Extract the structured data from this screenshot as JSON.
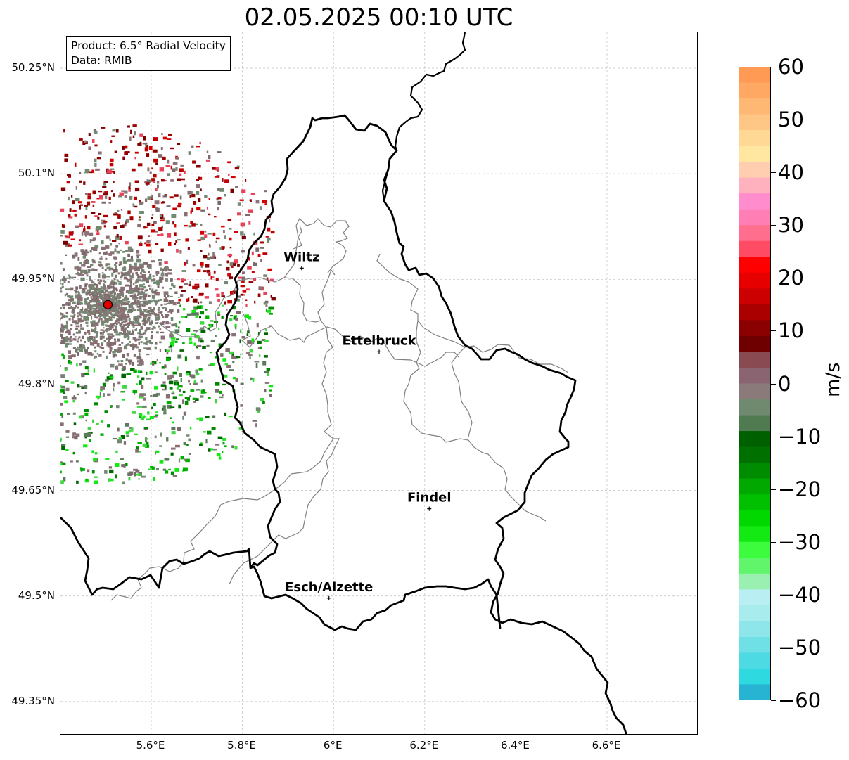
{
  "title": "02.05.2025 00:10 UTC",
  "info": {
    "product": "Product: 6.5° Radial Velocity",
    "source": "Data: RMIB"
  },
  "axes": {
    "lat_ticks": [
      "50.25°N",
      "50.1°N",
      "49.95°N",
      "49.8°N",
      "49.65°N",
      "49.5°N",
      "49.35°N"
    ],
    "lon_ticks": [
      "5.6°E",
      "5.8°E",
      "6°E",
      "6.2°E",
      "6.4°E",
      "6.6°E"
    ],
    "grid": true
  },
  "cities": [
    {
      "name": "Wiltz",
      "lon": 5.93,
      "lat": 49.966
    },
    {
      "name": "Ettelbruck",
      "lon": 6.1,
      "lat": 49.847
    },
    {
      "name": "Findel",
      "lon": 6.21,
      "lat": 49.624
    },
    {
      "name": "Esch/Alzette",
      "lon": 5.99,
      "lat": 49.497
    }
  ],
  "radar": {
    "lon": 5.505,
    "lat": 49.914,
    "color": "#e00000"
  },
  "colorbar": {
    "unit": "m/s",
    "min": -60,
    "max": 60,
    "ticks": [
      "60",
      "50",
      "40",
      "30",
      "20",
      "10",
      "0",
      "−10",
      "−20",
      "−30",
      "−40",
      "−50",
      "−60"
    ],
    "colors": {
      "inbound_deep": "#1f7fc4",
      "inbound_cyan": "#2fd9e0",
      "inbound_light": "#b9eef2",
      "green_bright": "#13ea13",
      "green_dark": "#006600",
      "zero_gray_green": "#6f8a6f",
      "zero_gray_red": "#8a6f72",
      "red_dark": "#7a0000",
      "red_bright": "#ff0000",
      "pink": "#ff8ccd",
      "orange": "#ff9a55"
    }
  }
}
